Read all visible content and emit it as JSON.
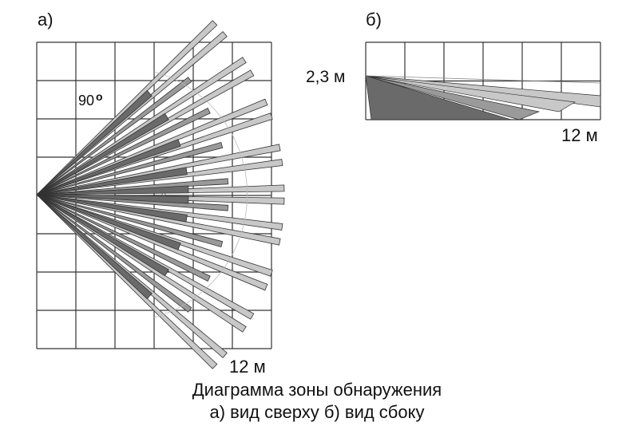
{
  "diagram": {
    "caption": "Диаграмма зоны обнаружения",
    "subcaption": "а) вид сверху  б) вид сбоку",
    "top_view": {
      "label": "а)",
      "angle_value": "90",
      "angle_unit": "o",
      "distance_label": "12 м",
      "grid_cols": 6,
      "grid_rows": 8
    },
    "side_view": {
      "label": "б)",
      "height_label": "2,3 м",
      "distance_label": "12 м",
      "grid_cols": 6,
      "grid_rows": 2
    },
    "colors": {
      "grid": "#333333",
      "beam_light": "#c8c8c8",
      "beam_mid": "#9a9a9a",
      "beam_dark": "#6a6a6a",
      "outline": "#333333"
    }
  }
}
